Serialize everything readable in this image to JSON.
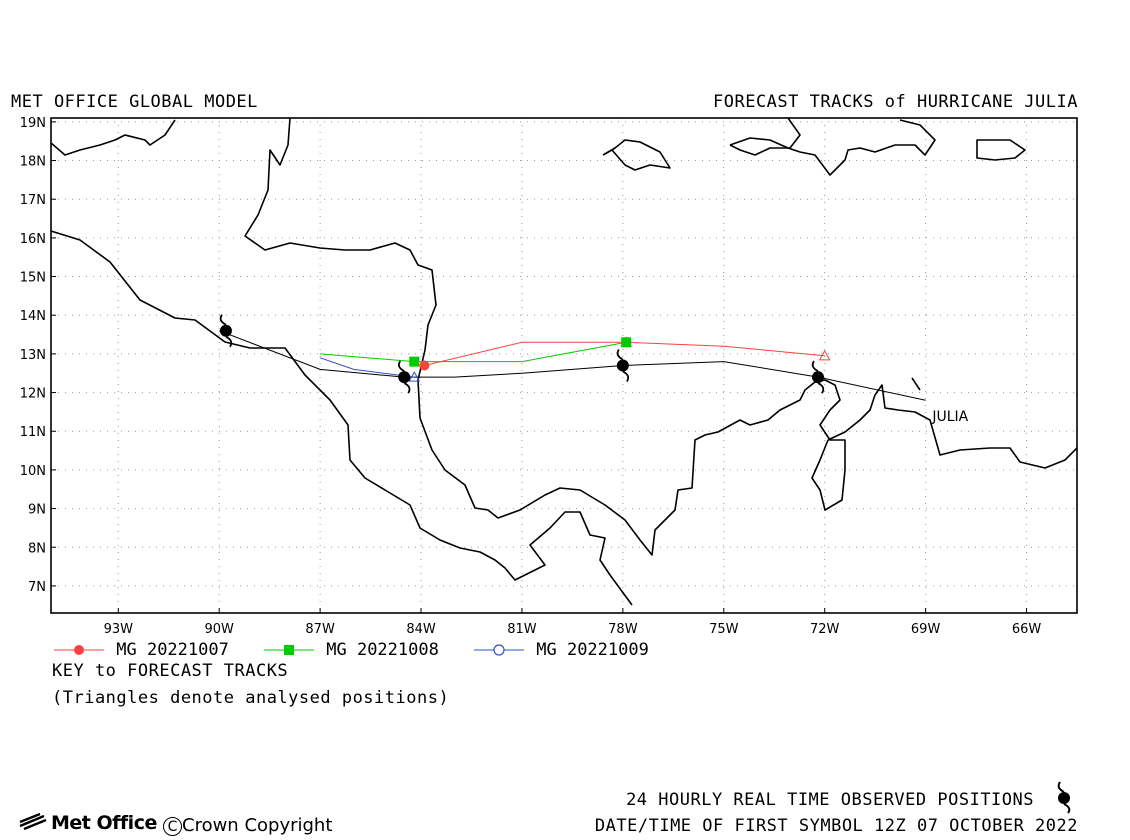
{
  "header": {
    "model_name": "MET OFFICE GLOBAL MODEL",
    "product_title": "FORECAST TRACKS of HURRICANE JULIA"
  },
  "map": {
    "lon_range": [
      -95,
      -64.5
    ],
    "lat_range": [
      6.3,
      19.1
    ],
    "lat_ticks": [
      {
        "value": 19,
        "label": "19N"
      },
      {
        "value": 18,
        "label": "18N"
      },
      {
        "value": 17,
        "label": "17N"
      },
      {
        "value": 16,
        "label": "16N"
      },
      {
        "value": 15,
        "label": "15N"
      },
      {
        "value": 14,
        "label": "14N"
      },
      {
        "value": 13,
        "label": "13N"
      },
      {
        "value": 12,
        "label": "12N"
      },
      {
        "value": 11,
        "label": "11N"
      },
      {
        "value": 10,
        "label": "10N"
      },
      {
        "value": 9,
        "label": "9N"
      },
      {
        "value": 8,
        "label": "8N"
      },
      {
        "value": 7,
        "label": "7N"
      }
    ],
    "lon_ticks": [
      {
        "value": -93,
        "label": "93W"
      },
      {
        "value": -90,
        "label": "90W"
      },
      {
        "value": -87,
        "label": "87W"
      },
      {
        "value": -84,
        "label": "84W"
      },
      {
        "value": -81,
        "label": "81W"
      },
      {
        "value": -78,
        "label": "78W"
      },
      {
        "value": -75,
        "label": "75W"
      },
      {
        "value": -72,
        "label": "72W"
      },
      {
        "value": -69,
        "label": "69W"
      },
      {
        "value": -66,
        "label": "66W"
      }
    ],
    "grid": true,
    "storm_label": {
      "text": "JULIA",
      "lon": -68.8,
      "lat": 11.4
    },
    "observed_track": [
      [
        -69.0,
        11.8
      ],
      [
        -72.2,
        12.4
      ],
      [
        -75.0,
        12.8
      ],
      [
        -78.0,
        12.7
      ],
      [
        -81.0,
        12.5
      ],
      [
        -83.0,
        12.4
      ],
      [
        -84.5,
        12.4
      ],
      [
        -87.0,
        12.6
      ],
      [
        -90.0,
        13.6
      ]
    ],
    "observed_positions": [
      [
        -72.2,
        12.4
      ],
      [
        -78.0,
        12.7
      ],
      [
        -84.5,
        12.4
      ],
      [
        -89.8,
        13.6
      ]
    ],
    "forecast_tracks": [
      {
        "name": "MG 20221007",
        "color": "#ff4040",
        "marker": "filled-circle",
        "points": [
          [
            -72.0,
            12.95
          ],
          [
            -75.0,
            13.2
          ],
          [
            -77.9,
            13.3
          ],
          [
            -81.0,
            13.3
          ],
          [
            -83.9,
            12.7
          ]
        ],
        "marked": [
          [
            -77.9,
            13.3
          ],
          [
            -83.9,
            12.7
          ]
        ],
        "analysed": [
          -72.0,
          12.95
        ]
      },
      {
        "name": "MG 20221008",
        "color": "#00cc00",
        "marker": "filled-square",
        "points": [
          [
            -77.9,
            13.3
          ],
          [
            -81.0,
            12.8
          ],
          [
            -84.2,
            12.8
          ],
          [
            -87.0,
            13.0
          ]
        ],
        "marked": [
          [
            -77.9,
            13.3
          ],
          [
            -84.2,
            12.8
          ]
        ],
        "analysed": [
          -77.9,
          13.3
        ]
      },
      {
        "name": "MG 20221009",
        "color": "#3050c0",
        "marker": "open-circle",
        "points": [
          [
            -84.2,
            12.4
          ],
          [
            -86.0,
            12.6
          ],
          [
            -87.0,
            12.9
          ]
        ],
        "marked": [],
        "analysed": [
          -84.2,
          12.4
        ]
      }
    ]
  },
  "legend": {
    "key_title": "KEY to FORECAST TRACKS",
    "key_note": "(Triangles denote analysed positions)"
  },
  "footer": {
    "observed_label": "24 HOURLY REAL TIME OBSERVED POSITIONS",
    "first_symbol": "DATE/TIME OF FIRST SYMBOL 12Z 07 OCTOBER 2022",
    "brand": "Met Office",
    "copyright": "Crown Copyright"
  }
}
